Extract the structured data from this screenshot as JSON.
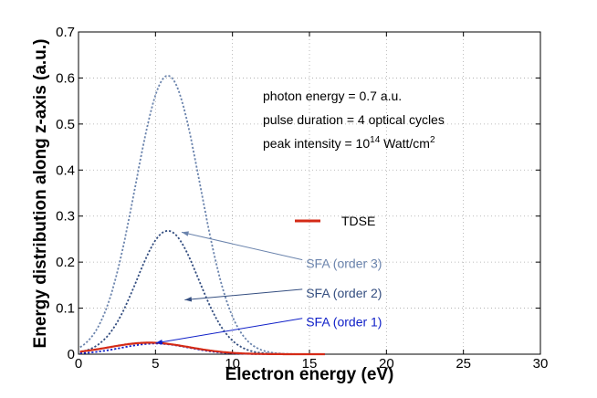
{
  "chart_data": {
    "type": "line",
    "xlabel": "Electron energy (eV)",
    "ylabel": "Energy distribution along z-axis (a.u.)",
    "xlim": [
      0,
      30
    ],
    "ylim": [
      0,
      0.7
    ],
    "xticks": [
      "0",
      "5",
      "10",
      "15",
      "20",
      "25",
      "30"
    ],
    "yticks": [
      "0",
      "0.1",
      "0.2",
      "0.3",
      "0.4",
      "0.5",
      "0.6",
      "0.7"
    ],
    "grid": true,
    "annotations": {
      "line1": "photon energy = 0.7 a.u.",
      "line2": "pulse duration = 4 optical cycles",
      "line3_prefix": "peak intensity = 10",
      "line3_exp": "14",
      "line3_mid": " Watt/cm",
      "line3_sup": "2"
    },
    "legend": {
      "label": "TDSE",
      "color": "#d42a16"
    },
    "series": [
      {
        "name": "SFA (order 3)",
        "color": "#6b84ad",
        "style": "dotted",
        "peak_x": 5.8,
        "sigma": 2.1,
        "peak_y": 0.605,
        "label_at": [
          9.5,
          0.197
        ],
        "arrow_to": [
          6.7,
          0.265
        ]
      },
      {
        "name": "SFA (order 2)",
        "color": "#344e80",
        "style": "dotted",
        "peak_x": 5.8,
        "sigma": 2.0,
        "peak_y": 0.268,
        "label_at": [
          9.5,
          0.133
        ],
        "arrow_to": [
          6.9,
          0.118
        ]
      },
      {
        "name": "SFA (order 1)",
        "color": "#1020c8",
        "style": "dotted",
        "peak_x": 5.0,
        "sigma": 2.2,
        "peak_y": 0.023,
        "label_at": [
          9.5,
          0.07
        ],
        "arrow_to": [
          5.0,
          0.024
        ]
      },
      {
        "name": "TDSE",
        "color": "#d42a16",
        "style": "solid",
        "peak_x": 4.6,
        "sigma": 2.6,
        "peak_y": 0.025
      }
    ]
  }
}
